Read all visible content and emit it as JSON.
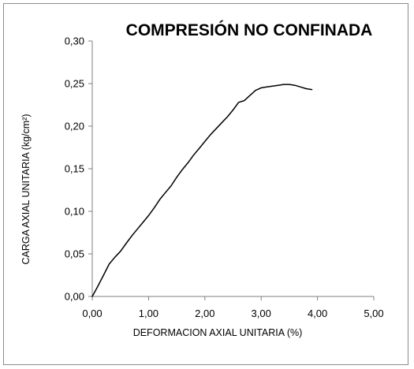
{
  "chart_data": {
    "type": "line",
    "title": "COMPRESIÓN NO CONFINADA",
    "xlabel": "DEFORMACION AXIAL UNITARIA (%)",
    "ylabel": "CARGA AXIAL UNITARIA (kg/cm²)",
    "xlim": [
      0,
      5
    ],
    "ylim": [
      0,
      0.3
    ],
    "x_ticks": [
      "0,00",
      "1,00",
      "2,00",
      "3,00",
      "4,00",
      "5,00"
    ],
    "y_ticks": [
      "0,00",
      "0,05",
      "0,10",
      "0,15",
      "0,20",
      "0,25",
      "0,30"
    ],
    "grid": false,
    "legend": "none",
    "line_color": "#000000",
    "series": [
      {
        "x": [
          0.0,
          0.1,
          0.2,
          0.3,
          0.4,
          0.5,
          0.6,
          0.7,
          0.8,
          0.9,
          1.0,
          1.1,
          1.2,
          1.3,
          1.4,
          1.5,
          1.6,
          1.7,
          1.8,
          1.9,
          2.0,
          2.1,
          2.2,
          2.3,
          2.4,
          2.5,
          2.6,
          2.7,
          2.8,
          2.9,
          3.0,
          3.1,
          3.2,
          3.3,
          3.4,
          3.5,
          3.6,
          3.7,
          3.8,
          3.9
        ],
        "y": [
          0.0,
          0.012,
          0.025,
          0.038,
          0.046,
          0.053,
          0.062,
          0.071,
          0.079,
          0.087,
          0.095,
          0.104,
          0.114,
          0.122,
          0.13,
          0.14,
          0.149,
          0.157,
          0.166,
          0.174,
          0.182,
          0.19,
          0.197,
          0.204,
          0.211,
          0.219,
          0.228,
          0.23,
          0.236,
          0.242,
          0.245,
          0.246,
          0.247,
          0.248,
          0.249,
          0.249,
          0.248,
          0.246,
          0.244,
          0.243
        ]
      }
    ]
  }
}
